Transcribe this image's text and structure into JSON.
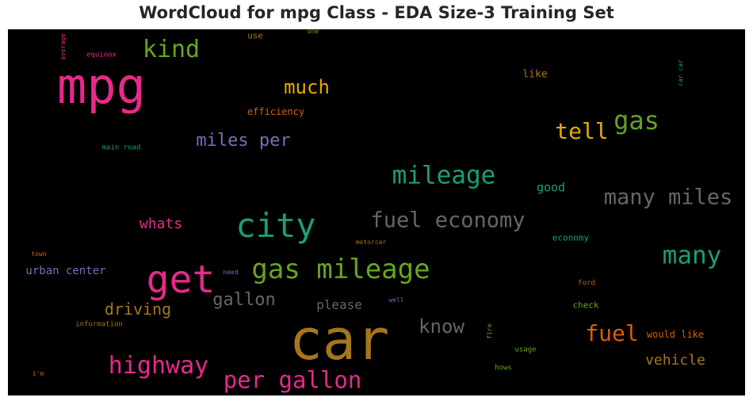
{
  "chart_data": {
    "type": "wordcloud",
    "title": "WordCloud for mpg Class - EDA Size-3 Training Set",
    "background": "#000000",
    "words": [
      {
        "text": "car",
        "weight": 1.0,
        "color": "#a6761d"
      },
      {
        "text": "mpg",
        "weight": 0.92,
        "color": "#e7298a"
      },
      {
        "text": "get",
        "weight": 0.72,
        "color": "#e7298a"
      },
      {
        "text": "city",
        "weight": 0.62,
        "color": "#1b9e77"
      },
      {
        "text": "gas mileage",
        "weight": 0.56,
        "color": "#66a61e"
      },
      {
        "text": "mileage",
        "weight": 0.5,
        "color": "#1b9e77"
      },
      {
        "text": "many",
        "weight": 0.5,
        "color": "#1b9e77"
      },
      {
        "text": "highway",
        "weight": 0.48,
        "color": "#e7298a"
      },
      {
        "text": "fuel economy",
        "weight": 0.46,
        "color": "#666666"
      },
      {
        "text": "many miles",
        "weight": 0.46,
        "color": "#666666"
      },
      {
        "text": "kind",
        "weight": 0.45,
        "color": "#66a61e"
      },
      {
        "text": "gas",
        "weight": 0.45,
        "color": "#66a61e"
      },
      {
        "text": "fuel",
        "weight": 0.45,
        "color": "#d95f02"
      },
      {
        "text": "per gallon",
        "weight": 0.44,
        "color": "#e7298a"
      },
      {
        "text": "tell",
        "weight": 0.42,
        "color": "#e6ab02"
      },
      {
        "text": "know",
        "weight": 0.4,
        "color": "#666666"
      },
      {
        "text": "much",
        "weight": 0.38,
        "color": "#e6ab02"
      },
      {
        "text": "gallon",
        "weight": 0.36,
        "color": "#666666"
      },
      {
        "text": "miles per",
        "weight": 0.35,
        "color": "#7570b3"
      },
      {
        "text": "driving",
        "weight": 0.34,
        "color": "#a6761d"
      },
      {
        "text": "vehicle",
        "weight": 0.3,
        "color": "#a6761d"
      },
      {
        "text": "whats",
        "weight": 0.28,
        "color": "#e7298a"
      },
      {
        "text": "please",
        "weight": 0.26,
        "color": "#666666"
      },
      {
        "text": "good",
        "weight": 0.24,
        "color": "#1b9e77"
      },
      {
        "text": "urban center",
        "weight": 0.22,
        "color": "#7570b3"
      },
      {
        "text": "like",
        "weight": 0.2,
        "color": "#a6761d"
      },
      {
        "text": "efficiency",
        "weight": 0.18,
        "color": "#d95f02"
      },
      {
        "text": "would like",
        "weight": 0.17,
        "color": "#d95f02"
      },
      {
        "text": "check",
        "weight": 0.16,
        "color": "#66a61e"
      },
      {
        "text": "economy",
        "weight": 0.16,
        "color": "#1b9e77"
      },
      {
        "text": "use",
        "weight": 0.15,
        "color": "#a6761d"
      },
      {
        "text": "equinox",
        "weight": 0.13,
        "color": "#e7298a"
      },
      {
        "text": "main road",
        "weight": 0.13,
        "color": "#1b9e77"
      },
      {
        "text": "ford",
        "weight": 0.13,
        "color": "#d95f02"
      },
      {
        "text": "usage",
        "weight": 0.13,
        "color": "#66a61e"
      },
      {
        "text": "information",
        "weight": 0.12,
        "color": "#a6761d"
      },
      {
        "text": "hows",
        "weight": 0.12,
        "color": "#66a61e"
      },
      {
        "text": "need",
        "weight": 0.12,
        "color": "#7570b3"
      },
      {
        "text": "well",
        "weight": 0.12,
        "color": "#7570b3"
      },
      {
        "text": "motorcar",
        "weight": 0.11,
        "color": "#a6761d"
      },
      {
        "text": "town",
        "weight": 0.11,
        "color": "#d95f02"
      },
      {
        "text": "i'm",
        "weight": 0.1,
        "color": "#d95f02"
      },
      {
        "text": "one",
        "weight": 0.1,
        "color": "#66a61e"
      },
      {
        "text": "average",
        "weight": 0.1,
        "color": "#e7298a"
      },
      {
        "text": "car car",
        "weight": 0.1,
        "color": "#1b9e77"
      },
      {
        "text": "fire",
        "weight": 0.1,
        "color": "#66a61e"
      }
    ]
  }
}
